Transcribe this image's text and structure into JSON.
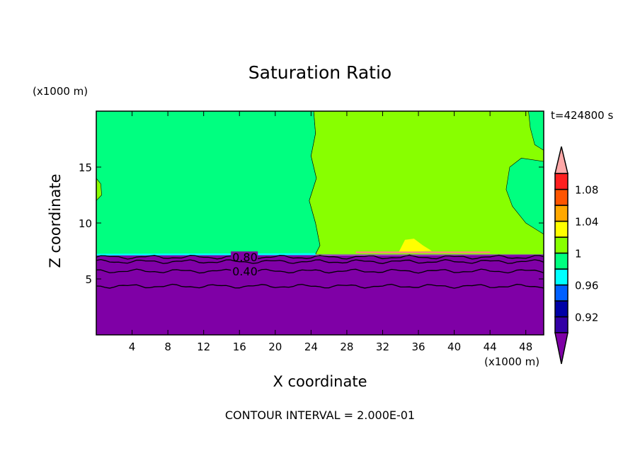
{
  "chart_data": {
    "type": "heatmap",
    "title": "Saturation Ratio",
    "xlabel": "X coordinate",
    "ylabel": "Z coordinate",
    "x_unit": "(x1000 m)",
    "y_unit": "(x1000 m)",
    "time_label": "t=424800 s",
    "footer": "CONTOUR INTERVAL = 2.000E-01",
    "xlim": [
      0,
      50
    ],
    "ylim": [
      0,
      20
    ],
    "xticks": [
      4,
      8,
      12,
      16,
      20,
      24,
      28,
      32,
      36,
      40,
      44,
      48
    ],
    "yticks": [
      5,
      10,
      15
    ],
    "colorbar": {
      "levels": [
        0.9,
        0.92,
        0.94,
        0.96,
        0.98,
        1.0,
        1.02,
        1.04,
        1.06,
        1.08,
        1.1
      ],
      "labels": [
        "0.92",
        "0.96",
        "1",
        "1.04",
        "1.08"
      ],
      "label_values": [
        0.92,
        0.96,
        1.0,
        1.04,
        1.08
      ],
      "colors": [
        "#7f00a6",
        "#3300a6",
        "#0000a6",
        "#0060ff",
        "#00ffff",
        "#00ff80",
        "#88ff00",
        "#ffff00",
        "#ffa800",
        "#ff5500",
        "#ff2020",
        "#ffa8a8"
      ]
    },
    "regions": [
      {
        "color": "#00ff80",
        "points": [
          [
            0,
            20
          ],
          [
            24.3,
            20
          ],
          [
            24.5,
            18
          ],
          [
            24,
            16
          ],
          [
            24.6,
            14
          ],
          [
            23.8,
            12
          ],
          [
            24.5,
            10
          ],
          [
            25,
            8
          ],
          [
            24.5,
            7.2
          ],
          [
            0,
            7.2
          ]
        ]
      },
      {
        "color": "#88ff00",
        "points": [
          [
            24.3,
            20
          ],
          [
            50,
            20
          ],
          [
            50,
            7.2
          ],
          [
            24.5,
            7.2
          ],
          [
            25,
            8
          ],
          [
            24.5,
            10
          ],
          [
            23.8,
            12
          ],
          [
            24.6,
            14
          ],
          [
            24,
            16
          ],
          [
            24.5,
            18
          ]
        ]
      },
      {
        "color": "#00ff80",
        "points": [
          [
            48.3,
            20
          ],
          [
            50,
            20
          ],
          [
            50,
            16.5
          ],
          [
            49,
            17
          ],
          [
            48.5,
            18.5
          ]
        ]
      },
      {
        "color": "#00ff80",
        "points": [
          [
            50,
            15.5
          ],
          [
            47.5,
            15.8
          ],
          [
            46.2,
            15
          ],
          [
            45.8,
            13
          ],
          [
            46.5,
            11.5
          ],
          [
            48,
            10
          ],
          [
            50,
            9
          ]
        ]
      },
      {
        "color": "#88ff00",
        "points": [
          [
            0,
            14
          ],
          [
            0.5,
            13.5
          ],
          [
            0.6,
            12.5
          ],
          [
            0,
            12
          ]
        ]
      },
      {
        "color": "#ffff00",
        "points": [
          [
            33.8,
            7.4
          ],
          [
            34.5,
            8.5
          ],
          [
            35.5,
            8.6
          ],
          [
            36.5,
            8.0
          ],
          [
            37.5,
            7.5
          ]
        ]
      },
      {
        "color": "#ff8080",
        "points": [
          [
            29,
            7.3
          ],
          [
            44,
            7.3
          ],
          [
            44,
            7.45
          ],
          [
            29,
            7.45
          ]
        ]
      },
      {
        "color": "#00ffff",
        "points": [
          [
            0,
            7.05
          ],
          [
            24.5,
            7.05
          ],
          [
            24.5,
            7.3
          ],
          [
            0,
            7.25
          ]
        ]
      },
      {
        "color": "#7f00a6",
        "points": [
          [
            0,
            0
          ],
          [
            50,
            0
          ],
          [
            50,
            7.15
          ],
          [
            0,
            7.1
          ]
        ]
      }
    ],
    "contours": [
      {
        "value": 0.8,
        "label": "0.80",
        "z": 6.95
      },
      {
        "value": 0.6,
        "label": "",
        "z": 6.55
      },
      {
        "value": 0.4,
        "label": "0.40",
        "z": 5.7
      },
      {
        "value": 0.2,
        "label": "",
        "z": 4.35
      }
    ]
  }
}
